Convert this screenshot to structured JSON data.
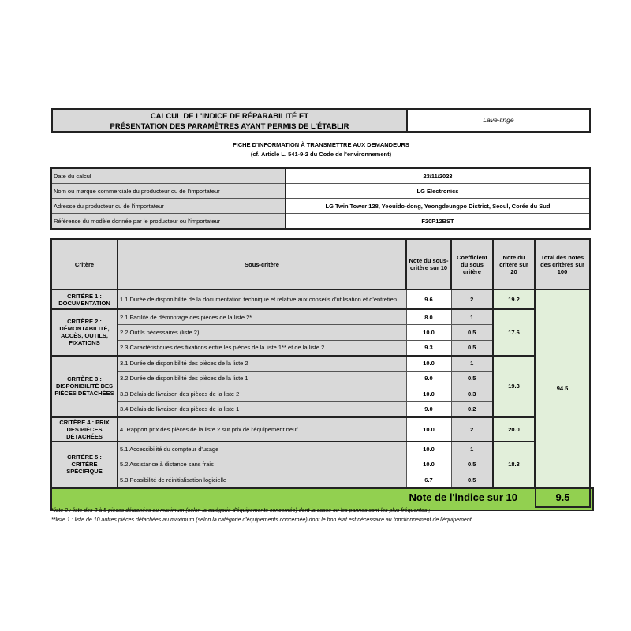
{
  "header": {
    "title_line1": "CALCUL DE L'INDICE DE RÉPARABILITÉ ET",
    "title_line2": "PRÉSENTATION DES PARAMÈTRES AYANT PERMIS DE L'ÉTABLIR",
    "product_type": "Lave-linge",
    "subtitle_line1": "FICHE D'INFORMATION À TRANSMETTRE AUX DEMANDEURS",
    "subtitle_line2": "(cf. Article L. 541-9-2 du Code de l'environnement)"
  },
  "info": [
    {
      "label": "Date du calcul",
      "value": "23/11/2023"
    },
    {
      "label": "Nom ou marque commerciale du producteur ou de l'importateur",
      "value": "LG Electronics"
    },
    {
      "label": "Adresse du producteur ou de l'importateur",
      "value": "LG Twin Tower 128, Yeouido-dong, Yeongdeungpo District, Seoul, Corée du Sud"
    },
    {
      "label": "Référence du modèle donnée par le producteur ou l'importateur",
      "value": "F20P12BST"
    }
  ],
  "table": {
    "headers": [
      "Critère",
      "Sous-critère",
      "Note du sous-critère sur 10",
      "Coefficient du sous critère",
      "Note du critère sur 20",
      "Total des notes des critères sur 100"
    ],
    "total": "94.5",
    "criteria": [
      {
        "name": "CRITÈRE 1 : DOCUMENTATION",
        "score": "19.2",
        "subs": [
          {
            "label": "1.1 Durée de disponibilité de la documentation technique et relative aux conseils d'utilisation et d'entretien",
            "note": "9.6",
            "coef": "2"
          }
        ]
      },
      {
        "name": "CRITÈRE 2 : DÉMONTABILITÉ, ACCÈS, OUTILS, FIXATIONS",
        "score": "17.6",
        "subs": [
          {
            "label": "2.1 Facilité de démontage des pièces de la liste 2*",
            "note": "8.0",
            "coef": "1"
          },
          {
            "label": "2.2 Outils nécessaires (liste 2)",
            "note": "10.0",
            "coef": "0.5"
          },
          {
            "label": "2.3 Caractéristiques des fixations entre les pièces de la liste 1** et de la liste 2",
            "note": "9.3",
            "coef": "0.5"
          }
        ]
      },
      {
        "name": "CRITÈRE 3 : DISPONIBILITÉ DES PIÈCES DÉTACHÉES",
        "score": "19.3",
        "subs": [
          {
            "label": "3.1 Durée de disponibilité des pièces de la liste 2",
            "note": "10.0",
            "coef": "1"
          },
          {
            "label": "3.2 Durée de disponibilité des pièces de la liste 1",
            "note": "9.0",
            "coef": "0.5"
          },
          {
            "label": "3.3 Délais de livraison des pièces de la liste 2",
            "note": "10.0",
            "coef": "0.3"
          },
          {
            "label": "3.4 Délais de livraison des pièces de la liste 1",
            "note": "9.0",
            "coef": "0.2"
          }
        ]
      },
      {
        "name": "CRITÈRE 4 : PRIX DES PIÈCES DÉTACHÉES",
        "score": "20.0",
        "subs": [
          {
            "label": "4. Rapport prix des pièces de la liste 2 sur prix de l'équipement neuf",
            "note": "10.0",
            "coef": "2"
          }
        ]
      },
      {
        "name": "CRITÈRE 5 : CRITÈRE SPÉCIFIQUE",
        "score": "18.3",
        "subs": [
          {
            "label": "5.1 Accessibilité du compteur d'usage",
            "note": "10.0",
            "coef": "1"
          },
          {
            "label": "5.2 Assistance à distance sans frais",
            "note": "10.0",
            "coef": "0.5"
          },
          {
            "label": "5.3 Possibilité de réinitialisation logicielle",
            "note": "6.7",
            "coef": "0.5"
          }
        ]
      }
    ]
  },
  "final": {
    "label": "Note de l'indice sur 10",
    "value": "9.5"
  },
  "footnotes": [
    "*liste 2 : liste des 3 à 5 pièces détachées au maximum (selon la catégorie d'équipements concernée) dont la casse ou les pannes sont les plus fréquentes ;",
    "**liste 1 : liste de 10 autres pièces détachées au maximum (selon la catégorie d'équipements concernée) dont le bon état est nécessaire au fonctionnement de l'équipement."
  ],
  "colors": {
    "header_gray": "#d9d9d9",
    "light_green": "#e2efda",
    "accent_green": "#92d050"
  }
}
